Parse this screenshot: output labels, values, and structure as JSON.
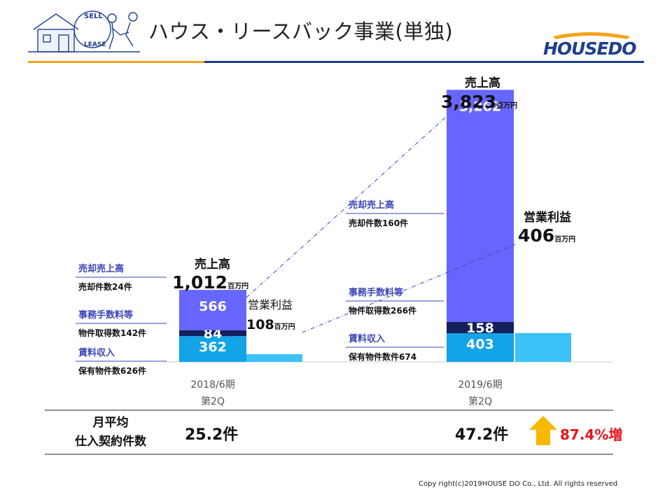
{
  "header": {
    "title": "ハウス・リースバック事業(単独)",
    "logo_text": "HOUSEDO",
    "icon_sell": "SELL",
    "icon_lease": "LEASE"
  },
  "legend_left": [
    {
      "label": "売却売上高",
      "sub": "売却件数24件"
    },
    {
      "label": "事務手数料等",
      "sub": "物件取得数142件"
    },
    {
      "label": "賃料収入",
      "sub": "保有物件数626件"
    }
  ],
  "legend_right": [
    {
      "label": "売却売上高",
      "sub": "売却件数160件"
    },
    {
      "label": "事務手数料等",
      "sub": "物件取得数266件"
    },
    {
      "label": "賃料収入",
      "sub": "保有物件数件674"
    }
  ],
  "annotations": {
    "sales_label": "売上高",
    "profit_label": "営業利益",
    "unit": "百万円",
    "sales_2018": "1,012",
    "profit_2018": "108",
    "sales_2019": "3,823",
    "profit_2019": "406"
  },
  "monthly": {
    "label_line1": "月平均",
    "label_line2": "仕入契約件数",
    "value_2018": "25.2件",
    "value_2019": "47.2件",
    "growth": "87.4%増"
  },
  "footer": {
    "copyright": "Copy right(c)2019HOUSE DO Co., Ltd. All rights reserved"
  },
  "colors": {
    "sale": "#6666ff",
    "fee": "#14205e",
    "rent": "#12a4e6",
    "profit": "#3bc3f7",
    "accent_red": "#e8141b",
    "arrow": "#f6b800",
    "legend_label": "#3a44b8"
  },
  "chart_data": {
    "type": "bar",
    "categories": [
      "2018/6期\n第2Q",
      "2019/6期\n第2Q"
    ],
    "series": [
      {
        "name": "売却売上高",
        "values": [
          566,
          3262
        ]
      },
      {
        "name": "事務手数料等",
        "values": [
          84,
          158
        ]
      },
      {
        "name": "賃料収入",
        "values": [
          362,
          403
        ]
      },
      {
        "name": "営業利益",
        "values": [
          108,
          406
        ]
      }
    ],
    "totals": [
      1012,
      3823
    ],
    "title": "",
    "xlabel": "",
    "ylabel": "",
    "ylim": [
      0,
      4200
    ],
    "grid": false,
    "legend": "none"
  }
}
